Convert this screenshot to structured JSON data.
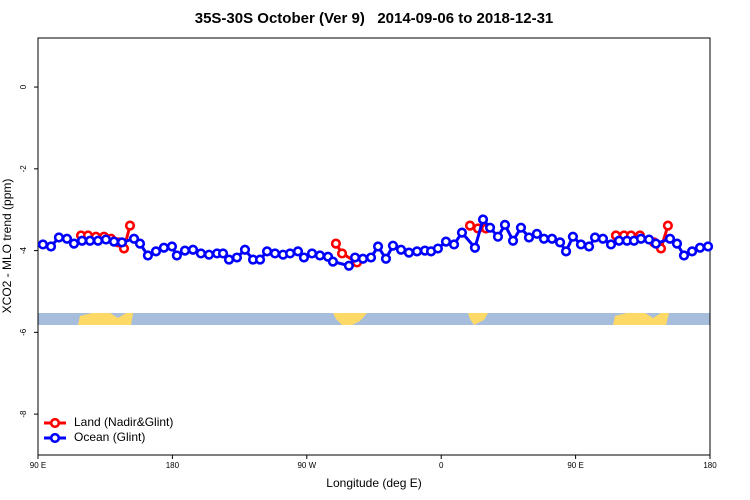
{
  "chart_data": {
    "type": "line",
    "title": "35S-30S October (Ver 9)   2014-09-06 to 2018-12-31",
    "x_label": "Longitude (deg E)",
    "y_label": "XCO2 - MLO trend (ppm)",
    "xlim": [
      90,
      540
    ],
    "xticks": [
      {
        "value": 90,
        "label": "90 E"
      },
      {
        "value": 180,
        "label": "180"
      },
      {
        "value": 270,
        "label": "90 W"
      },
      {
        "value": 360,
        "label": "0"
      },
      {
        "value": 450,
        "label": "90 E"
      },
      {
        "value": 540,
        "label": "180"
      }
    ],
    "ylim": [
      -9.0,
      1.2
    ],
    "yticks": [
      0,
      -2,
      -4,
      -6,
      -8
    ],
    "legend": "bottom-left",
    "series": [
      {
        "name": "Land (Nadir&Glint)",
        "color": "#ff0000",
        "x": [
          118.8,
          123.5,
          128.8,
          134.2,
          138.9,
          143.6,
          147.6,
          151.6,
          null,
          289.5,
          293.6,
          303.6,
          null,
          379.3,
          384.6,
          390.0,
          null,
          477.0,
          482.4,
          487.1,
          493.1,
          502.5,
          507.2,
          511.8
        ],
        "values": [
          -3.63,
          -3.63,
          -3.66,
          -3.66,
          -3.71,
          -3.8,
          -3.95,
          -3.39,
          null,
          -3.83,
          -4.07,
          -4.29,
          null,
          -3.39,
          -3.46,
          -3.46,
          null,
          -3.63,
          -3.63,
          -3.63,
          -3.63,
          -3.8,
          -3.95,
          -3.39
        ]
      },
      {
        "name": "Ocean (Glint)",
        "color": "#0000ff",
        "x": [
          93.3,
          98.7,
          104.0,
          109.4,
          114.1,
          119.5,
          124.8,
          130.2,
          135.5,
          140.9,
          146.2,
          154.3,
          158.3,
          163.6,
          169.0,
          174.3,
          179.7,
          183.0,
          188.4,
          193.8,
          199.1,
          204.5,
          209.9,
          213.9,
          217.9,
          223.2,
          228.6,
          234.0,
          238.7,
          243.4,
          248.7,
          254.1,
          258.8,
          264.1,
          268.1,
          273.5,
          278.8,
          284.2,
          287.5,
          298.2,
          302.3,
          307.6,
          313.0,
          317.7,
          323.0,
          327.7,
          333.1,
          338.4,
          343.8,
          349.1,
          353.2,
          357.8,
          363.2,
          368.6,
          373.9,
          382.6,
          388.0,
          392.7,
          398.0,
          402.7,
          408.1,
          413.4,
          418.8,
          424.1,
          428.8,
          434.2,
          439.6,
          443.6,
          448.2,
          453.6,
          459.0,
          463.0,
          468.3,
          473.7,
          479.1,
          484.4,
          489.1,
          493.8,
          499.2,
          503.8,
          513.2,
          517.9,
          522.6,
          528.0,
          533.3,
          538.7
        ],
        "values": [
          -3.85,
          -3.9,
          -3.68,
          -3.71,
          -3.83,
          -3.76,
          -3.76,
          -3.76,
          -3.73,
          -3.78,
          -3.8,
          -3.71,
          -3.83,
          -4.12,
          -4.02,
          -3.93,
          -3.9,
          -4.12,
          -4.0,
          -3.98,
          -4.07,
          -4.1,
          -4.07,
          -4.07,
          -4.22,
          -4.17,
          -3.98,
          -4.22,
          -4.22,
          -4.02,
          -4.07,
          -4.1,
          -4.07,
          -4.02,
          -4.17,
          -4.07,
          -4.12,
          -4.15,
          -4.27,
          -4.37,
          -4.17,
          -4.2,
          -4.17,
          -3.9,
          -4.2,
          -3.88,
          -3.98,
          -4.05,
          -4.02,
          -4.0,
          -4.02,
          -3.95,
          -3.78,
          -3.85,
          -3.56,
          -3.93,
          -3.24,
          -3.44,
          -3.66,
          -3.37,
          -3.76,
          -3.44,
          -3.68,
          -3.59,
          -3.71,
          -3.71,
          -3.8,
          -4.02,
          -3.66,
          -3.85,
          -3.9,
          -3.68,
          -3.71,
          -3.85,
          -3.76,
          -3.76,
          -3.76,
          -3.71,
          -3.73,
          -3.83,
          -3.71,
          -3.83,
          -4.12,
          -4.02,
          -3.93,
          -3.9
        ]
      }
    ]
  }
}
